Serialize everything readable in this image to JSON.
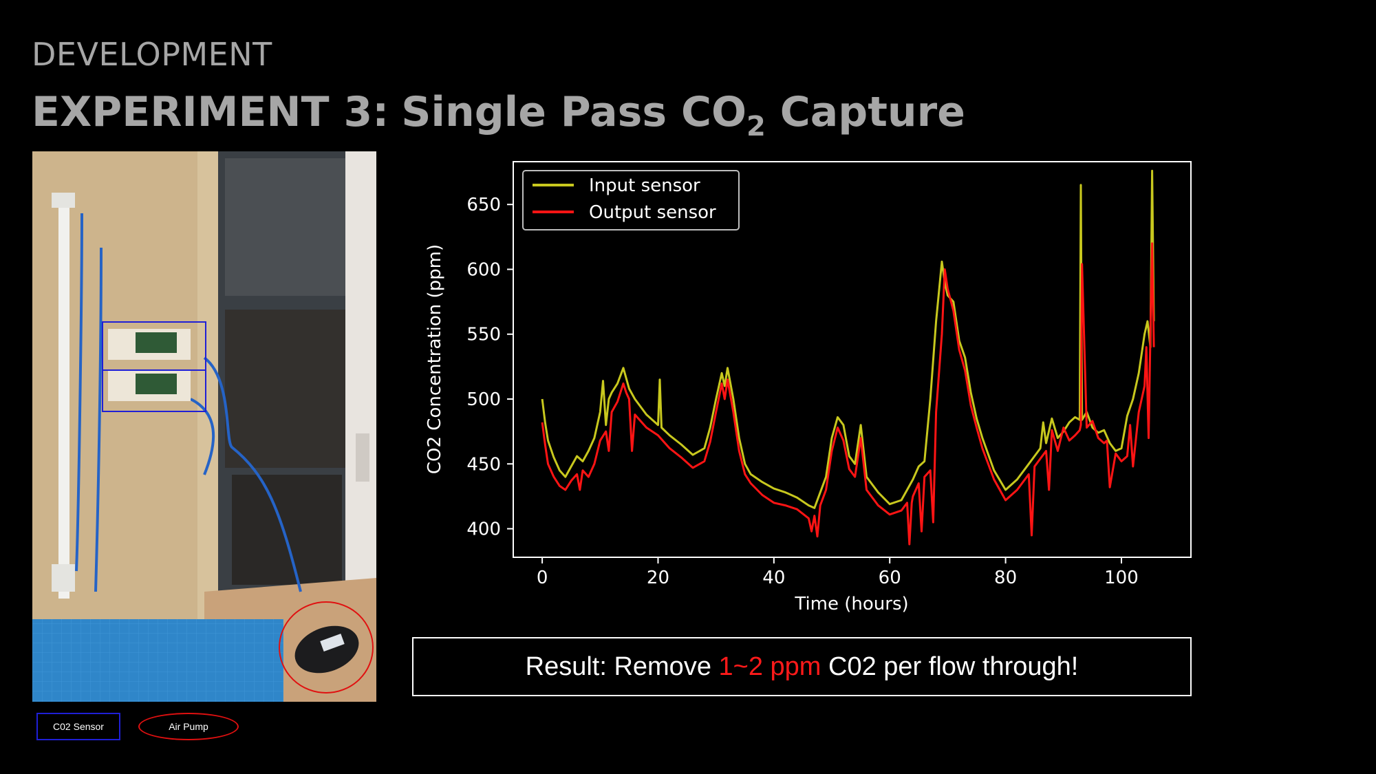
{
  "slide": {
    "eyebrow": "DEVELOPMENT",
    "title_prefix": "EXPERIMENT 3:",
    "title_main": "Single Pass CO",
    "title_sub": "2",
    "title_suffix": " Capture"
  },
  "photo_legend": {
    "sensor_label": "C02 Sensor",
    "pump_label": "Air Pump",
    "sensor_color": "#1f1fd6",
    "pump_color": "#e01010"
  },
  "result": {
    "before": "Result: Remove ",
    "highlight": "1~2 ppm",
    "after": " C02 per flow through!",
    "highlight_color": "#ff1a1a"
  },
  "chart_data": {
    "type": "line",
    "xlabel": "Time (hours)",
    "ylabel": "CO2 Concentration (ppm)",
    "xlim": [
      -5,
      112
    ],
    "ylim": [
      378,
      683
    ],
    "xticks": [
      0,
      20,
      40,
      60,
      80,
      100
    ],
    "yticks": [
      400,
      450,
      500,
      550,
      600,
      650
    ],
    "grid": false,
    "legend_position": "top-left",
    "background": "#000000",
    "series": [
      {
        "name": "Input sensor",
        "color": "#c8c81e",
        "x": [
          0,
          0.5,
          1,
          2,
          3,
          4,
          5,
          6,
          7,
          8,
          9,
          10,
          10.5,
          11,
          11.5,
          12,
          13,
          14,
          15,
          16,
          18,
          20,
          20.3,
          20.6,
          22,
          24,
          26,
          28,
          29,
          30,
          31,
          31.5,
          32,
          33,
          34,
          35,
          36,
          38,
          40,
          42,
          44,
          46,
          47,
          48,
          49,
          50,
          51,
          52,
          53,
          54,
          55,
          56,
          58,
          60,
          62,
          63,
          64,
          65,
          66,
          67,
          68,
          69,
          69.5,
          70,
          71,
          72,
          73,
          74,
          75,
          76,
          78,
          80,
          82,
          84,
          85,
          86,
          86.5,
          87,
          88,
          89,
          90,
          91,
          92,
          92.8,
          93,
          93.2,
          94,
          95,
          96,
          97,
          98,
          99,
          100,
          101,
          102,
          103,
          104,
          104.5,
          105,
          105.3,
          105.6
        ],
        "y": [
          500,
          482,
          468,
          455,
          445,
          440,
          448,
          456,
          452,
          460,
          470,
          490,
          514,
          480,
          500,
          505,
          512,
          524,
          508,
          500,
          488,
          480,
          515,
          478,
          472,
          465,
          457,
          462,
          478,
          500,
          520,
          510,
          524,
          500,
          470,
          450,
          442,
          436,
          431,
          428,
          424,
          418,
          416,
          428,
          440,
          470,
          486,
          480,
          456,
          450,
          480,
          440,
          428,
          419,
          422,
          430,
          438,
          448,
          452,
          500,
          560,
          606,
          590,
          580,
          575,
          545,
          532,
          505,
          485,
          470,
          445,
          430,
          438,
          450,
          456,
          462,
          482,
          466,
          485,
          470,
          475,
          482,
          486,
          484,
          665,
          484,
          490,
          478,
          474,
          476,
          466,
          460,
          462,
          487,
          500,
          520,
          550,
          560,
          540,
          676,
          560
        ]
      },
      {
        "name": "Output sensor",
        "color": "#ff1414",
        "x": [
          0,
          0.5,
          1,
          2,
          3,
          4,
          5,
          6,
          6.5,
          7,
          8,
          9,
          10,
          11,
          11.5,
          12,
          13,
          14,
          14.5,
          15,
          15.5,
          16,
          18,
          20,
          22,
          24,
          26,
          28,
          29,
          30,
          31,
          31.5,
          32,
          33,
          34,
          35,
          36,
          38,
          40,
          42,
          44,
          46,
          46.5,
          47,
          47.5,
          48,
          49,
          50,
          51,
          52,
          53,
          54,
          55,
          56,
          58,
          60,
          62,
          63,
          63.4,
          63.8,
          64,
          65,
          65.5,
          66,
          67,
          67.5,
          68,
          69,
          69.5,
          70,
          71,
          72,
          73,
          74,
          75,
          76,
          78,
          80,
          82,
          84,
          84.5,
          85,
          86,
          87,
          87.5,
          88,
          89,
          90,
          91,
          92,
          92.8,
          93,
          93.2,
          94,
          95,
          96,
          97,
          97.5,
          98,
          99,
          100,
          101,
          101.5,
          102,
          103,
          104,
          104.3,
          104.7,
          105,
          105.3,
          105.6
        ],
        "y": [
          482,
          465,
          450,
          440,
          433,
          430,
          437,
          442,
          430,
          445,
          440,
          450,
          468,
          475,
          460,
          490,
          498,
          512,
          505,
          500,
          460,
          488,
          478,
          472,
          462,
          455,
          447,
          452,
          467,
          490,
          512,
          500,
          515,
          490,
          460,
          442,
          435,
          426,
          420,
          418,
          415,
          408,
          398,
          410,
          394,
          418,
          430,
          460,
          478,
          468,
          446,
          440,
          470,
          430,
          418,
          411,
          414,
          420,
          388,
          420,
          425,
          435,
          398,
          440,
          445,
          405,
          490,
          550,
          600,
          585,
          568,
          538,
          522,
          495,
          478,
          462,
          438,
          422,
          430,
          442,
          395,
          448,
          454,
          460,
          430,
          476,
          460,
          478,
          468,
          472,
          476,
          480,
          604,
          478,
          483,
          470,
          466,
          468,
          432,
          458,
          452,
          456,
          480,
          448,
          490,
          510,
          540,
          470,
          550,
          620,
          540
        ]
      }
    ]
  }
}
